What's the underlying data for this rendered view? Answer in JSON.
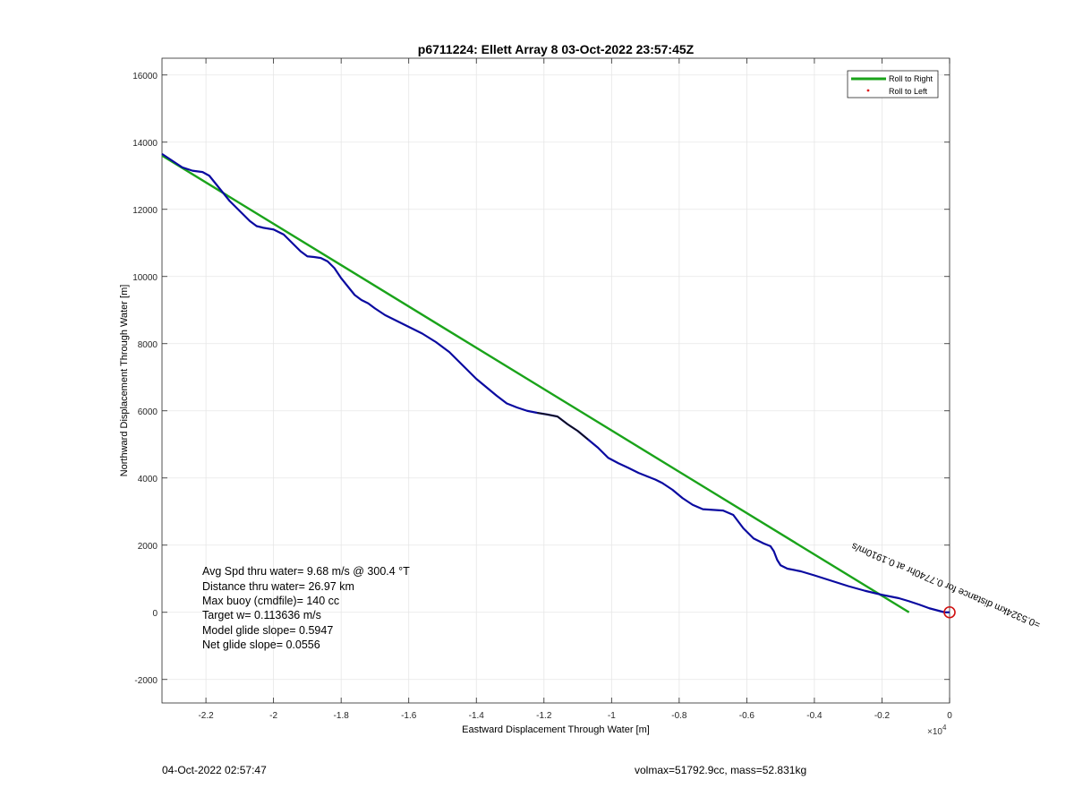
{
  "chart_data": {
    "type": "line",
    "title": "p6711224: Ellett Array 8 03-Oct-2022 23:57:45Z",
    "xlabel": "Eastward Displacement Through Water [m]",
    "ylabel": "Northward Displacement Through Water [m]",
    "x_exponent_label": "×10",
    "x_exponent_power": "4",
    "xlim": [
      -23300,
      0
    ],
    "ylim": [
      -2700,
      16500
    ],
    "grid": true,
    "xticks": [
      -22000,
      -20000,
      -18000,
      -16000,
      -14000,
      -12000,
      -10000,
      -8000,
      -6000,
      -4000,
      -2000,
      0
    ],
    "xtick_labels": [
      "-2.2",
      "-2",
      "-1.8",
      "-1.6",
      "-1.4",
      "-1.2",
      "-1",
      "-0.8",
      "-0.6",
      "-0.4",
      "-0.2",
      "0"
    ],
    "yticks": [
      -2000,
      0,
      2000,
      4000,
      6000,
      8000,
      10000,
      12000,
      14000,
      16000
    ],
    "ytick_labels": [
      "-2000",
      "0",
      "2000",
      "4000",
      "6000",
      "8000",
      "10000",
      "12000",
      "14000",
      "16000"
    ],
    "legend_position": "top-right",
    "colors": {
      "roll_right": "#1aa31a",
      "roll_left": "#e02020",
      "track": "#0a0aa0",
      "track_segment": "#111111",
      "end_marker": "#d01010"
    },
    "series": [
      {
        "name": "Roll to Right",
        "x": [
          -23300,
          -1200
        ],
        "y": [
          13600,
          0
        ]
      },
      {
        "name": "Roll to Left",
        "x": [],
        "y": []
      }
    ],
    "track": {
      "x": [
        -23300,
        -23000,
        -22700,
        -22400,
        -22100,
        -21900,
        -21700,
        -21500,
        -21300,
        -21100,
        -20900,
        -20700,
        -20500,
        -20300,
        -20000,
        -19700,
        -19400,
        -19200,
        -19000,
        -18800,
        -18600,
        -18400,
        -18200,
        -18000,
        -17800,
        -17600,
        -17400,
        -17200,
        -17000,
        -16700,
        -16400,
        -16000,
        -15600,
        -15200,
        -14800,
        -14600,
        -14400,
        -14200,
        -14000,
        -13700,
        -13400,
        -13100,
        -12800,
        -12500,
        -12200,
        -11900,
        -11600,
        -11300,
        -11000,
        -10700,
        -10400,
        -10100,
        -9800,
        -9500,
        -9200,
        -8900,
        -8700,
        -8500,
        -8200,
        -7900,
        -7600,
        -7300,
        -7000,
        -6700,
        -6400,
        -6100,
        -5800,
        -5500,
        -5300,
        -5200,
        -5100,
        -5000,
        -4800,
        -4400,
        -4000,
        -3500,
        -3000,
        -2500,
        -2000,
        -1500,
        -1200,
        -900,
        -600,
        -300,
        -150,
        0
      ],
      "y": [
        13650,
        13450,
        13250,
        13150,
        13110,
        13000,
        12750,
        12500,
        12250,
        12050,
        11850,
        11650,
        11500,
        11450,
        11400,
        11250,
        10950,
        10750,
        10600,
        10580,
        10550,
        10450,
        10250,
        9950,
        9700,
        9450,
        9300,
        9200,
        9050,
        8850,
        8700,
        8500,
        8300,
        8050,
        7750,
        7550,
        7350,
        7150,
        6950,
        6700,
        6450,
        6220,
        6100,
        6000,
        5940,
        5890,
        5830,
        5600,
        5400,
        5150,
        4900,
        4600,
        4440,
        4300,
        4150,
        4030,
        3950,
        3850,
        3650,
        3400,
        3200,
        3070,
        3050,
        3030,
        2900,
        2500,
        2200,
        2050,
        1970,
        1820,
        1560,
        1400,
        1300,
        1220,
        1100,
        940,
        780,
        640,
        520,
        420,
        330,
        230,
        120,
        40,
        0,
        0
      ],
      "segment_note": "black segment between x=-12200 and x=-10700"
    },
    "annotation": {
      "text": "=0.5324km distance for 0.7740hr at 0.1910m/s",
      "mirrored": true
    }
  },
  "stats": {
    "avg_spd": "Avg Spd thru water=  9.68 m/s @ 300.4 °T",
    "distance": "Distance thru water= 26.97 km",
    "max_buoy": "Max buoy (cmdfile)= 140 cc",
    "target_w": "Target w= 0.113636 m/s",
    "model_glide": "Model glide slope= 0.5947",
    "net_glide": "Net glide slope= 0.0556"
  },
  "footer": {
    "timestamp": "04-Oct-2022 02:57:47",
    "vol_mass": "volmax=51792.9cc, mass=52.831kg"
  }
}
